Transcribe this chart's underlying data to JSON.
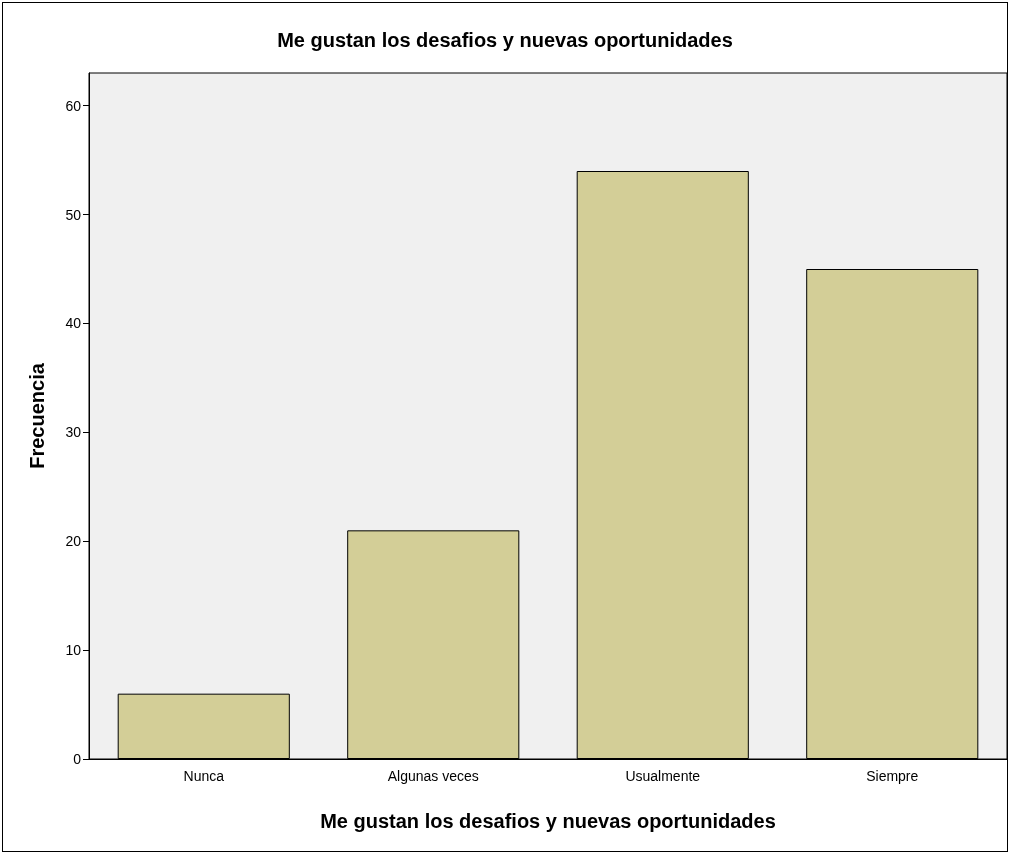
{
  "chart_data": {
    "type": "bar",
    "title": "Me gustan los desafios y nuevas oportunidades",
    "xlabel": "Me gustan los desafios y nuevas oportunidades",
    "ylabel": "Frecuencia",
    "categories": [
      "Nunca",
      "Algunas veces",
      "Usualmente",
      "Siempre"
    ],
    "values": [
      6,
      21,
      54,
      45
    ],
    "color": "#d3ce97",
    "ylim": [
      0,
      63
    ],
    "yticks": [
      0,
      10,
      20,
      30,
      40,
      50,
      60
    ],
    "grid": false
  }
}
